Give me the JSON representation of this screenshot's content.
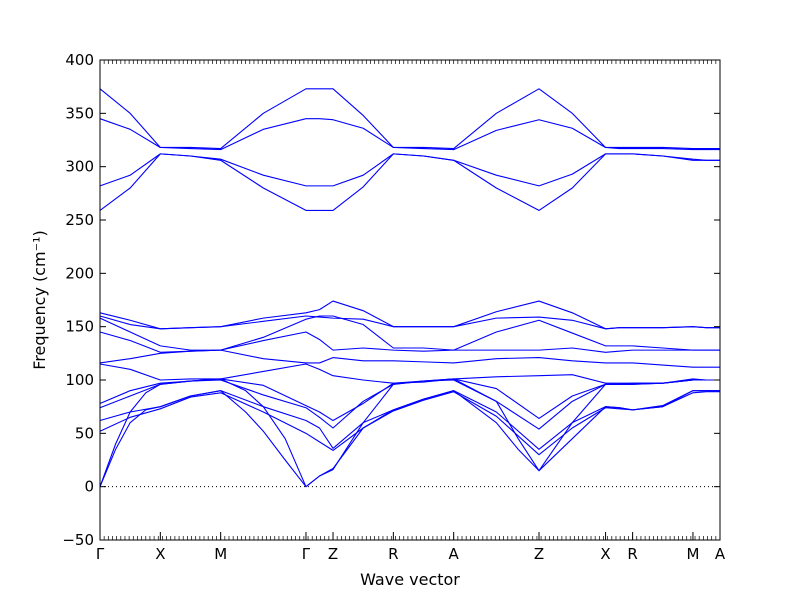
{
  "chart_data": {
    "type": "line",
    "title": "",
    "xlabel": "Wave vector",
    "ylabel": "Frequency (cm⁻¹)",
    "ylim": [
      -50,
      400
    ],
    "yticks": [
      -50,
      0,
      50,
      100,
      150,
      200,
      250,
      300,
      350,
      400
    ],
    "grid": false,
    "zero_line": 0,
    "path_points": [
      {
        "label": "Γ",
        "x": 0.0
      },
      {
        "label": "X",
        "x": 0.58
      },
      {
        "label": "M",
        "x": 1.16
      },
      {
        "label": "Γ",
        "x": 1.98
      },
      {
        "label": "Z",
        "x": 2.24
      },
      {
        "label": "R",
        "x": 2.82
      },
      {
        "label": "A",
        "x": 3.4
      },
      {
        "label": "Z",
        "x": 4.22
      },
      {
        "label": "X",
        "x": 4.86
      },
      {
        "label": "R",
        "x": 5.12
      },
      {
        "label": "M",
        "x": 5.7
      },
      {
        "label": "A",
        "x": 5.96
      }
    ],
    "band_color": "#0000ff",
    "series": [
      {
        "x": [
          0.0,
          0.29,
          0.58,
          0.87,
          1.16,
          1.57,
          1.98,
          2.11,
          2.24,
          2.53,
          2.82,
          3.11,
          3.4,
          3.81,
          4.22,
          4.54,
          4.86,
          4.99,
          5.12,
          5.41,
          5.7,
          5.83,
          5.96
        ],
        "y": [
          373,
          350,
          318,
          318,
          317,
          350,
          373,
          373,
          373,
          348,
          318,
          318,
          317,
          350,
          373,
          350,
          318,
          318,
          318,
          318,
          317,
          317,
          317
        ]
      },
      {
        "x": [
          0.0,
          0.29,
          0.58,
          0.87,
          1.16,
          1.57,
          1.98,
          2.11,
          2.24,
          2.53,
          2.82,
          3.11,
          3.4,
          3.81,
          4.22,
          4.54,
          4.86,
          4.99,
          5.12,
          5.41,
          5.7,
          5.83,
          5.96
        ],
        "y": [
          345,
          335,
          318,
          317,
          316,
          335,
          345,
          345,
          344,
          336,
          318,
          317,
          316,
          334,
          344,
          336,
          318,
          317,
          317,
          317,
          316,
          316,
          316
        ]
      },
      {
        "x": [
          0.0,
          0.29,
          0.58,
          0.87,
          1.16,
          1.57,
          1.98,
          2.11,
          2.24,
          2.53,
          2.82,
          3.11,
          3.4,
          3.81,
          4.22,
          4.54,
          4.86,
          4.99,
          5.12,
          5.41,
          5.7,
          5.83,
          5.96
        ],
        "y": [
          282,
          292,
          312,
          310,
          307,
          292,
          282,
          282,
          282,
          292,
          312,
          310,
          306,
          292,
          282,
          293,
          312,
          312,
          312,
          310,
          307,
          306,
          306
        ]
      },
      {
        "x": [
          0.0,
          0.29,
          0.58,
          0.87,
          1.16,
          1.57,
          1.98,
          2.11,
          2.24,
          2.53,
          2.82,
          3.11,
          3.4,
          3.81,
          4.22,
          4.54,
          4.86,
          4.99,
          5.12,
          5.41,
          5.7,
          5.83,
          5.96
        ],
        "y": [
          259,
          280,
          312,
          310,
          306,
          280,
          259,
          259,
          259,
          281,
          312,
          310,
          306,
          280,
          259,
          280,
          312,
          312,
          312,
          310,
          306,
          306,
          306
        ]
      },
      {
        "x": [
          0.0,
          0.29,
          0.58,
          0.87,
          1.16,
          1.57,
          1.98,
          2.11,
          2.24,
          2.53,
          2.82,
          3.11,
          3.4,
          3.81,
          4.22,
          4.54,
          4.86,
          4.99,
          5.12,
          5.41,
          5.7,
          5.83,
          5.96
        ],
        "y": [
          163,
          156,
          148,
          149,
          150,
          158,
          163,
          166,
          174,
          165,
          150,
          150,
          150,
          164,
          174,
          163,
          148,
          149,
          149,
          149,
          150,
          149,
          149
        ]
      },
      {
        "x": [
          0.0,
          0.29,
          0.58,
          0.87,
          1.16,
          1.57,
          1.98,
          2.11,
          2.24,
          2.53,
          2.82,
          3.11,
          3.4,
          3.81,
          4.22,
          4.54,
          4.86,
          4.99,
          5.12,
          5.41,
          5.7,
          5.83,
          5.96
        ],
        "y": [
          160,
          152,
          148,
          149,
          150,
          155,
          160,
          159,
          158,
          157,
          150,
          150,
          150,
          158,
          159,
          156,
          148,
          149,
          149,
          149,
          150,
          149,
          149
        ]
      },
      {
        "x": [
          0.0,
          0.29,
          0.58,
          0.87,
          1.16,
          1.57,
          1.98,
          2.11,
          2.24,
          2.53,
          2.82,
          3.11,
          3.4,
          3.81,
          4.22,
          4.54,
          4.86,
          4.99,
          5.12,
          5.41,
          5.7,
          5.83,
          5.96
        ],
        "y": [
          158,
          145,
          132,
          128,
          128,
          140,
          157,
          160,
          160,
          152,
          130,
          130,
          128,
          145,
          156,
          144,
          132,
          132,
          132,
          130,
          128,
          128,
          128
        ]
      },
      {
        "x": [
          0.0,
          0.29,
          0.58,
          0.87,
          1.16,
          1.57,
          1.98,
          2.11,
          2.24,
          2.53,
          2.82,
          3.11,
          3.4,
          3.81,
          4.22,
          4.54,
          4.86,
          4.99,
          5.12,
          5.41,
          5.7,
          5.83,
          5.96
        ],
        "y": [
          145,
          137,
          126,
          127,
          128,
          137,
          145,
          138,
          128,
          130,
          128,
          127,
          128,
          128,
          128,
          130,
          126,
          127,
          128,
          128,
          128,
          128,
          128
        ]
      },
      {
        "x": [
          0.0,
          0.29,
          0.58,
          0.87,
          1.16,
          1.57,
          1.98,
          2.11,
          2.24,
          2.53,
          2.82,
          3.11,
          3.4,
          3.81,
          4.22,
          4.54,
          4.86,
          4.99,
          5.12,
          5.41,
          5.7,
          5.83,
          5.96
        ],
        "y": [
          116,
          120,
          125,
          127,
          128,
          120,
          116,
          116,
          121,
          118,
          118,
          117,
          116,
          120,
          121,
          118,
          116,
          116,
          116,
          114,
          112,
          112,
          112
        ]
      },
      {
        "x": [
          0.0,
          0.29,
          0.58,
          0.87,
          1.16,
          1.57,
          1.98,
          2.11,
          2.24,
          2.53,
          2.82,
          3.11,
          3.4,
          3.81,
          4.22,
          4.54,
          4.86,
          4.99,
          5.12,
          5.41,
          5.7,
          5.83,
          5.96
        ],
        "y": [
          115,
          110,
          100,
          101,
          101,
          108,
          115,
          110,
          104,
          100,
          97,
          98,
          101,
          103,
          104,
          105,
          97,
          97,
          97,
          97,
          100,
          100,
          100
        ]
      },
      {
        "x": [
          0.0,
          0.29,
          0.58,
          0.87,
          1.16,
          1.57,
          1.98,
          2.11,
          2.24,
          2.53,
          2.82,
          3.11,
          3.4,
          3.81,
          4.22,
          4.54,
          4.86,
          4.99,
          5.12,
          5.41,
          5.7,
          5.83,
          5.96
        ],
        "y": [
          78,
          90,
          97,
          99,
          101,
          95,
          76,
          70,
          62,
          78,
          97,
          99,
          101,
          92,
          64,
          85,
          96,
          96,
          97,
          97,
          100,
          100,
          100
        ]
      },
      {
        "x": [
          0.0,
          0.29,
          0.58,
          0.87,
          1.16,
          1.57,
          1.98,
          2.11,
          2.24,
          2.53,
          2.82,
          3.11,
          3.4,
          3.81,
          4.22,
          4.54,
          4.86,
          4.99,
          5.12,
          5.41,
          5.7,
          5.83,
          5.96
        ],
        "y": [
          74,
          85,
          96,
          99,
          100,
          86,
          74,
          65,
          55,
          80,
          96,
          99,
          100,
          80,
          54,
          80,
          96,
          96,
          96,
          97,
          100,
          100,
          100
        ]
      },
      {
        "x": [
          0.0,
          0.29,
          0.58,
          0.87,
          1.16,
          1.57,
          1.98,
          2.11,
          2.24,
          2.53,
          2.82,
          3.11,
          3.4,
          3.81,
          4.22,
          4.54,
          4.86,
          4.99,
          5.12,
          5.41,
          5.7,
          5.83,
          5.96
        ],
        "y": [
          62,
          70,
          75,
          85,
          90,
          75,
          62,
          55,
          36,
          60,
          72,
          82,
          90,
          70,
          35,
          60,
          75,
          74,
          72,
          75,
          90,
          90,
          90
        ]
      },
      {
        "x": [
          0.0,
          0.29,
          0.58,
          0.87,
          1.16,
          1.57,
          1.98,
          2.11,
          2.24,
          2.53,
          2.82,
          3.11,
          3.4,
          3.81,
          4.22,
          4.54,
          4.86,
          4.99,
          5.12,
          5.41,
          5.7,
          5.83,
          5.96
        ],
        "y": [
          52,
          65,
          73,
          84,
          88,
          70,
          50,
          42,
          34,
          55,
          71,
          81,
          89,
          66,
          30,
          55,
          74,
          73,
          72,
          75,
          88,
          89,
          89
        ]
      },
      {
        "x": [
          0.0,
          0.15,
          0.29,
          0.44,
          0.58,
          0.87,
          1.16,
          1.4,
          1.57,
          1.78,
          1.98,
          2.11,
          2.24,
          2.53,
          2.82,
          3.11,
          3.4,
          3.81,
          4.02,
          4.22,
          4.54,
          4.86,
          4.99,
          5.12,
          5.41,
          5.7,
          5.83,
          5.96
        ],
        "y": [
          0,
          35,
          60,
          72,
          75,
          85,
          90,
          70,
          52,
          25,
          0,
          10,
          17,
          55,
          72,
          82,
          90,
          60,
          35,
          15,
          45,
          75,
          74,
          72,
          76,
          90,
          90,
          90
        ]
      },
      {
        "x": [
          0.0,
          0.15,
          0.29,
          0.44,
          0.58,
          0.87,
          1.16,
          1.4,
          1.57,
          1.78,
          1.98,
          2.11,
          2.24,
          2.53,
          2.82,
          3.11,
          3.4,
          3.81,
          4.02,
          4.22,
          4.54,
          4.86,
          4.99,
          5.12,
          5.41,
          5.7,
          5.83,
          5.96
        ],
        "y": [
          0,
          40,
          70,
          88,
          96,
          99,
          101,
          90,
          75,
          45,
          0,
          10,
          16,
          60,
          96,
          99,
          101,
          80,
          45,
          15,
          60,
          96,
          96,
          96,
          97,
          101,
          100,
          100
        ]
      }
    ]
  }
}
